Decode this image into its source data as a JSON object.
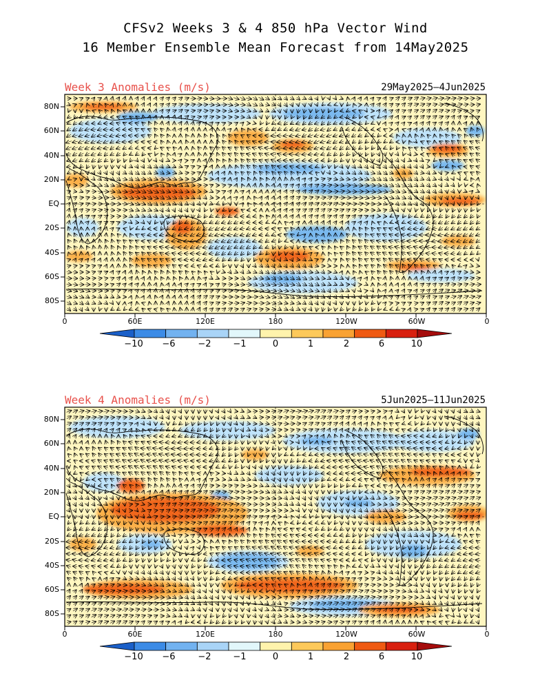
{
  "header": {
    "line1": "CFSv2 Weeks 3 & 4 850 hPa Vector Wind",
    "line2": "16 Member Ensemble Mean Forecast from 14May2025"
  },
  "panels": [
    {
      "title": "Week 3 Anomalies (m/s)",
      "dates": "29May2025—4Jun2025"
    },
    {
      "title": "Week 4 Anomalies (m/s)",
      "dates": "5Jun2025—11Jun2025"
    }
  ],
  "axes": {
    "lat_labels": [
      "80N",
      "60N",
      "40N",
      "20N",
      "EQ",
      "20S",
      "40S",
      "60S",
      "80S"
    ],
    "lon_labels": [
      "0",
      "60E",
      "120E",
      "180",
      "120W",
      "60W",
      "0"
    ]
  },
  "colorbar": {
    "labels": [
      "−10",
      "−6",
      "−2",
      "−1",
      "0",
      "1",
      "2",
      "6",
      "10"
    ],
    "colors": [
      "#1a5fc8",
      "#3c8be6",
      "#72b2f0",
      "#a9d4f7",
      "#e2f7fb",
      "#fff3ac",
      "#fdc95a",
      "#f9a233",
      "#ef5a12",
      "#d8200f",
      "#a50c0c"
    ]
  },
  "colors": {
    "title_red": "#e8504a",
    "coast": "#000000",
    "arrow": "#000000"
  }
}
